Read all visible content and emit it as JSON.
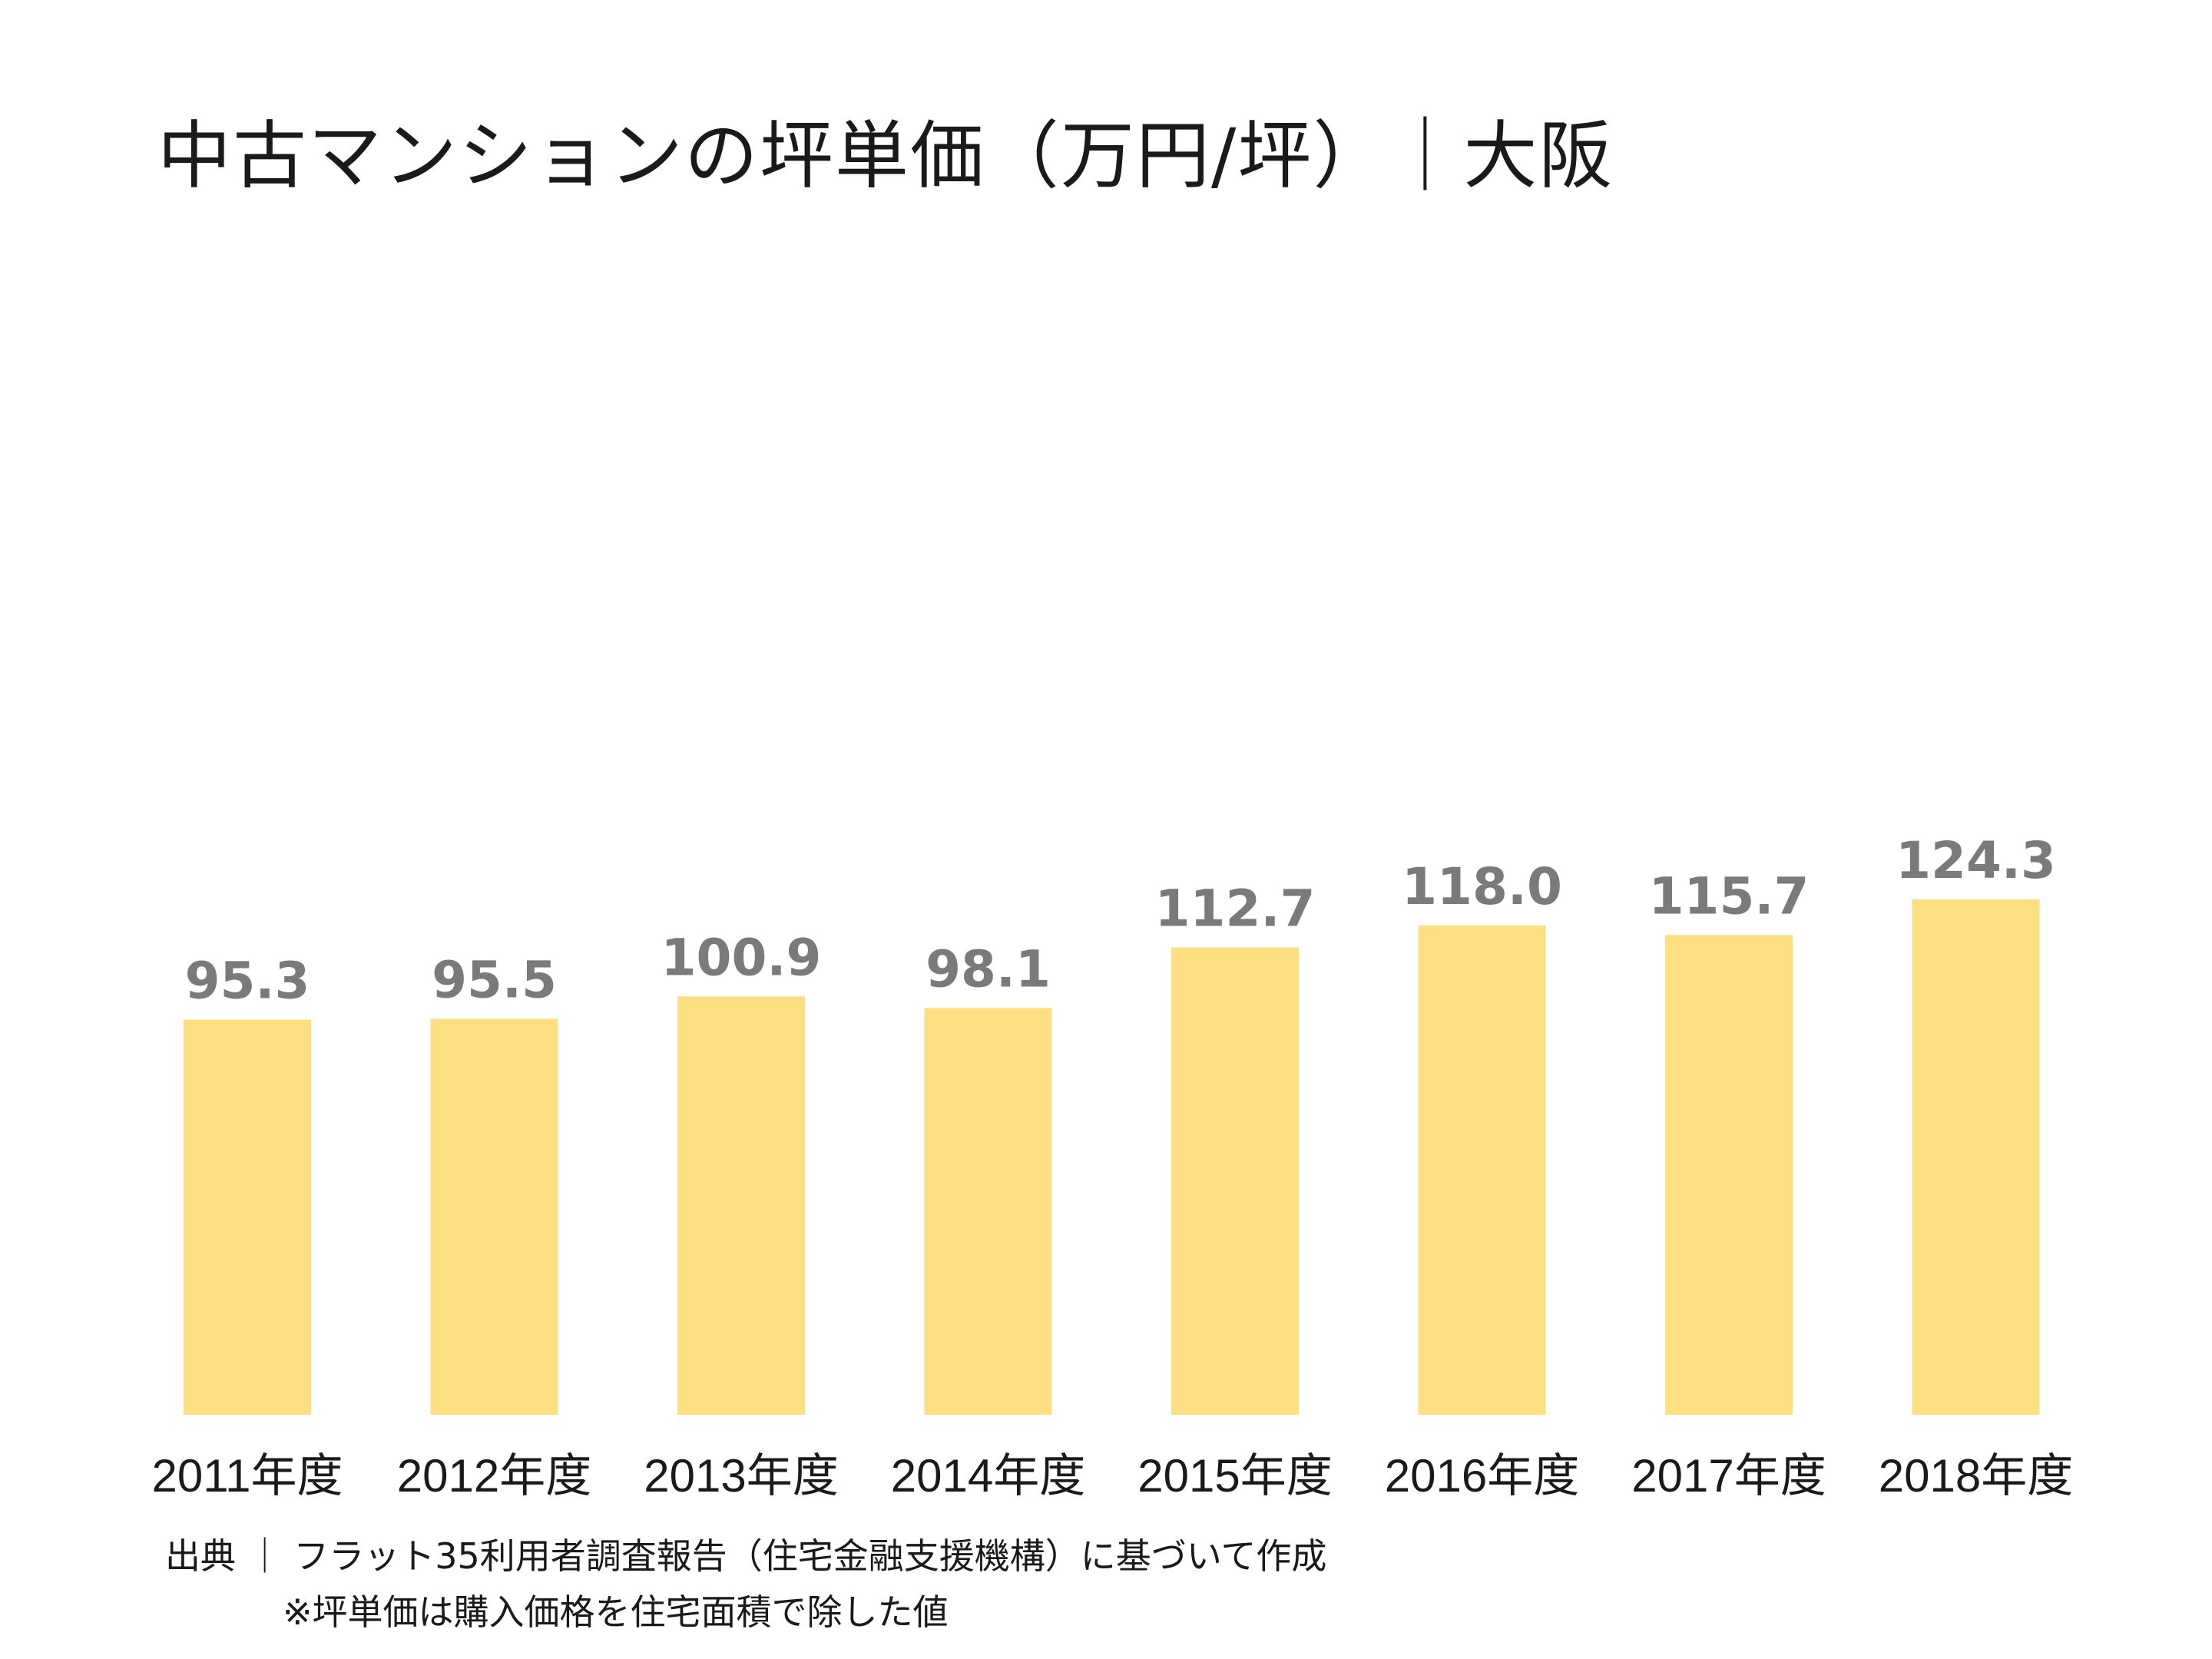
{
  "chart_data": {
    "type": "bar",
    "title": "中古マンションの坪単価（万円/坪）｜大阪",
    "categories": [
      "2011年度",
      "2012年度",
      "2013年度",
      "2014年度",
      "2015年度",
      "2016年度",
      "2017年度",
      "2018年度"
    ],
    "values": [
      95.3,
      95.5,
      100.9,
      98.1,
      112.7,
      118.0,
      115.7,
      124.3
    ],
    "value_labels": [
      "95.3",
      "95.5",
      "100.9",
      "98.1",
      "112.7",
      "118.0",
      "115.7",
      "124.3"
    ],
    "xlabel": "",
    "ylabel": "",
    "ylim": [
      0,
      136
    ],
    "grid": false,
    "legend": "none",
    "bar_color": "#fddf82",
    "value_label_color": "#7a7a7a"
  },
  "footer": {
    "source": "出典 ｜ フラット35利用者調査報告（住宅金融支援機構）に基づいて作成",
    "note": "※坪単価は購入価格を住宅面積で除した値"
  }
}
